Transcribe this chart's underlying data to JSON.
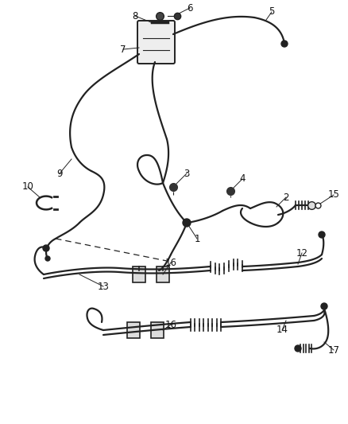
{
  "bg_color": "#ffffff",
  "line_color": "#222222",
  "lw": 1.6,
  "figsize": [
    4.38,
    5.33
  ],
  "dpi": 100
}
